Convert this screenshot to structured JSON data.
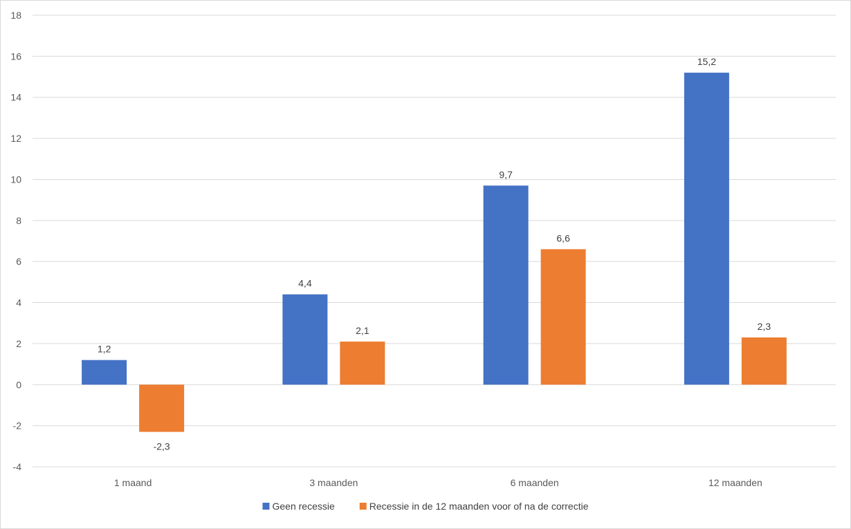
{
  "chart_data": {
    "type": "bar",
    "categories": [
      "1 maand",
      "3 maanden",
      "6 maanden",
      "12 maanden"
    ],
    "series": [
      {
        "name": "Geen recessie",
        "values": [
          1.2,
          4.4,
          9.7,
          15.2
        ],
        "labels": [
          "1,2",
          "4,4",
          "9,7",
          "15,2"
        ],
        "color": "#4472C4"
      },
      {
        "name": "Recessie in de 12 maanden voor of na de correctie",
        "values": [
          -2.3,
          2.1,
          6.6,
          2.3
        ],
        "labels": [
          "-2,3",
          "2,1",
          "6,6",
          "2,3"
        ],
        "color": "#ED7D31"
      }
    ],
    "yticks": [
      -4,
      -2,
      0,
      2,
      4,
      6,
      8,
      10,
      12,
      14,
      16,
      18
    ],
    "ylim": [
      -4,
      18
    ],
    "grid": true,
    "legend_position": "bottom",
    "gridline_color": "#d9d9d9"
  }
}
